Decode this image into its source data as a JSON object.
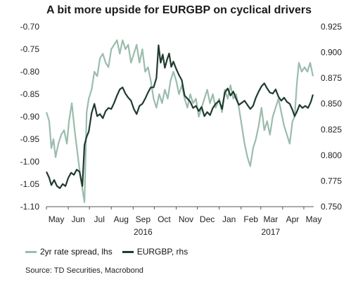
{
  "title": "A bit more upside for EURGBP on cyclical drivers",
  "source": "Source: TD Securities, Macrobond",
  "colors": {
    "series1": "#9bbcad",
    "series2": "#1f3b2e"
  },
  "chart_data": {
    "type": "line",
    "x_months": [
      "May",
      "Jun",
      "Jul",
      "Aug",
      "Sep",
      "Oct",
      "Nov",
      "Dec",
      "Jan",
      "Feb",
      "Mar",
      "Apr",
      "May"
    ],
    "year_labels": [
      {
        "label": "2016",
        "near": "Sep"
      },
      {
        "label": "2017",
        "near": "Mar"
      }
    ],
    "x_range": [
      "2016-05-01",
      "2017-05-15"
    ],
    "y_left": {
      "range": [
        -1.1,
        -0.7
      ],
      "ticks": [
        "-0.70",
        "-0.75",
        "-0.80",
        "-0.85",
        "-0.90",
        "-0.95",
        "-1.00",
        "-1.05",
        "-1.10"
      ]
    },
    "y_right": {
      "range": [
        0.75,
        0.925
      ],
      "ticks": [
        "0.925",
        "0.900",
        "0.875",
        "0.850",
        "0.825",
        "0.800",
        "0.775",
        "0.750"
      ]
    },
    "grid": false,
    "legend_position": "bottom-left",
    "series": [
      {
        "name": "2yr rate spread, lhs",
        "axis": "left",
        "points": [
          [
            "2016-05-01",
            -0.89
          ],
          [
            "2016-05-05",
            -0.91
          ],
          [
            "2016-05-08",
            -0.97
          ],
          [
            "2016-05-11",
            -0.95
          ],
          [
            "2016-05-14",
            -0.99
          ],
          [
            "2016-05-18",
            -0.96
          ],
          [
            "2016-05-22",
            -0.94
          ],
          [
            "2016-05-26",
            -0.93
          ],
          [
            "2016-05-30",
            -0.96
          ],
          [
            "2016-06-02",
            -0.91
          ],
          [
            "2016-06-06",
            -0.87
          ],
          [
            "2016-06-10",
            -0.93
          ],
          [
            "2016-06-14",
            -0.98
          ],
          [
            "2016-06-18",
            -1.03
          ],
          [
            "2016-06-21",
            -1.06
          ],
          [
            "2016-06-24",
            -1.09
          ],
          [
            "2016-06-27",
            -0.89
          ],
          [
            "2016-06-30",
            -0.86
          ],
          [
            "2016-07-04",
            -0.84
          ],
          [
            "2016-07-08",
            -0.8
          ],
          [
            "2016-07-12",
            -0.81
          ],
          [
            "2016-07-16",
            -0.77
          ],
          [
            "2016-07-20",
            -0.76
          ],
          [
            "2016-07-24",
            -0.78
          ],
          [
            "2016-07-28",
            -0.79
          ],
          [
            "2016-08-01",
            -0.75
          ],
          [
            "2016-08-05",
            -0.74
          ],
          [
            "2016-08-09",
            -0.73
          ],
          [
            "2016-08-13",
            -0.76
          ],
          [
            "2016-08-17",
            -0.73
          ],
          [
            "2016-08-21",
            -0.75
          ],
          [
            "2016-08-25",
            -0.74
          ],
          [
            "2016-08-29",
            -0.78
          ],
          [
            "2016-09-02",
            -0.76
          ],
          [
            "2016-09-06",
            -0.74
          ],
          [
            "2016-09-10",
            -0.78
          ],
          [
            "2016-09-14",
            -0.75
          ],
          [
            "2016-09-18",
            -0.8
          ],
          [
            "2016-09-22",
            -0.79
          ],
          [
            "2016-09-26",
            -0.82
          ],
          [
            "2016-09-30",
            -0.86
          ],
          [
            "2016-10-04",
            -0.88
          ],
          [
            "2016-10-08",
            -0.85
          ],
          [
            "2016-10-12",
            -0.87
          ],
          [
            "2016-10-16",
            -0.84
          ],
          [
            "2016-10-20",
            -0.86
          ],
          [
            "2016-10-24",
            -0.82
          ],
          [
            "2016-10-28",
            -0.8
          ],
          [
            "2016-11-01",
            -0.82
          ],
          [
            "2016-11-05",
            -0.85
          ],
          [
            "2016-11-09",
            -0.83
          ],
          [
            "2016-11-13",
            -0.86
          ],
          [
            "2016-11-17",
            -0.88
          ],
          [
            "2016-11-21",
            -0.85
          ],
          [
            "2016-11-25",
            -0.87
          ],
          [
            "2016-11-29",
            -0.86
          ],
          [
            "2016-12-03",
            -0.9
          ],
          [
            "2016-12-07",
            -0.88
          ],
          [
            "2016-12-11",
            -0.86
          ],
          [
            "2016-12-15",
            -0.84
          ],
          [
            "2016-12-19",
            -0.87
          ],
          [
            "2016-12-23",
            -0.85
          ],
          [
            "2016-12-27",
            -0.88
          ],
          [
            "2017-01-01",
            -0.86
          ],
          [
            "2017-01-05",
            -0.89
          ],
          [
            "2017-01-09",
            -0.84
          ],
          [
            "2017-01-13",
            -0.86
          ],
          [
            "2017-01-17",
            -0.83
          ],
          [
            "2017-01-21",
            -0.86
          ],
          [
            "2017-01-25",
            -0.85
          ],
          [
            "2017-01-29",
            -0.88
          ],
          [
            "2017-02-02",
            -0.92
          ],
          [
            "2017-02-06",
            -0.96
          ],
          [
            "2017-02-10",
            -0.99
          ],
          [
            "2017-02-14",
            -1.01
          ],
          [
            "2017-02-18",
            -0.97
          ],
          [
            "2017-02-22",
            -0.95
          ],
          [
            "2017-02-26",
            -0.92
          ],
          [
            "2017-03-02",
            -0.88
          ],
          [
            "2017-03-06",
            -0.93
          ],
          [
            "2017-03-10",
            -0.91
          ],
          [
            "2017-03-14",
            -0.94
          ],
          [
            "2017-03-18",
            -0.9
          ],
          [
            "2017-03-22",
            -0.88
          ],
          [
            "2017-03-26",
            -0.86
          ],
          [
            "2017-03-30",
            -0.89
          ],
          [
            "2017-04-03",
            -0.92
          ],
          [
            "2017-04-07",
            -0.94
          ],
          [
            "2017-04-11",
            -0.96
          ],
          [
            "2017-04-15",
            -0.91
          ],
          [
            "2017-04-18",
            -0.9
          ],
          [
            "2017-04-21",
            -0.83
          ],
          [
            "2017-04-24",
            -0.78
          ],
          [
            "2017-04-28",
            -0.8
          ],
          [
            "2017-05-02",
            -0.79
          ],
          [
            "2017-05-06",
            -0.8
          ],
          [
            "2017-05-10",
            -0.78
          ],
          [
            "2017-05-14",
            -0.81
          ]
        ]
      },
      {
        "name": "EURGBP, rhs",
        "axis": "right",
        "points": [
          [
            "2016-05-01",
            0.784
          ],
          [
            "2016-05-05",
            0.778
          ],
          [
            "2016-05-08",
            0.771
          ],
          [
            "2016-05-12",
            0.776
          ],
          [
            "2016-05-16",
            0.77
          ],
          [
            "2016-05-20",
            0.768
          ],
          [
            "2016-05-24",
            0.772
          ],
          [
            "2016-05-28",
            0.77
          ],
          [
            "2016-06-01",
            0.778
          ],
          [
            "2016-06-05",
            0.783
          ],
          [
            "2016-06-09",
            0.781
          ],
          [
            "2016-06-13",
            0.786
          ],
          [
            "2016-06-17",
            0.784
          ],
          [
            "2016-06-21",
            0.77
          ],
          [
            "2016-06-24",
            0.81
          ],
          [
            "2016-06-27",
            0.818
          ],
          [
            "2016-06-30",
            0.823
          ],
          [
            "2016-07-04",
            0.841
          ],
          [
            "2016-07-08",
            0.85
          ],
          [
            "2016-07-12",
            0.838
          ],
          [
            "2016-07-16",
            0.84
          ],
          [
            "2016-07-20",
            0.836
          ],
          [
            "2016-07-24",
            0.843
          ],
          [
            "2016-07-28",
            0.846
          ],
          [
            "2016-08-01",
            0.845
          ],
          [
            "2016-08-05",
            0.851
          ],
          [
            "2016-08-09",
            0.858
          ],
          [
            "2016-08-13",
            0.864
          ],
          [
            "2016-08-17",
            0.866
          ],
          [
            "2016-08-21",
            0.86
          ],
          [
            "2016-08-25",
            0.856
          ],
          [
            "2016-08-29",
            0.853
          ],
          [
            "2016-09-02",
            0.845
          ],
          [
            "2016-09-06",
            0.84
          ],
          [
            "2016-09-10",
            0.848
          ],
          [
            "2016-09-14",
            0.85
          ],
          [
            "2016-09-18",
            0.855
          ],
          [
            "2016-09-22",
            0.861
          ],
          [
            "2016-09-26",
            0.866
          ],
          [
            "2016-09-30",
            0.866
          ],
          [
            "2016-10-04",
            0.875
          ],
          [
            "2016-10-07",
            0.907
          ],
          [
            "2016-10-10",
            0.89
          ],
          [
            "2016-10-13",
            0.898
          ],
          [
            "2016-10-16",
            0.885
          ],
          [
            "2016-10-19",
            0.893
          ],
          [
            "2016-10-22",
            0.899
          ],
          [
            "2016-10-25",
            0.886
          ],
          [
            "2016-10-28",
            0.891
          ],
          [
            "2016-11-01",
            0.884
          ],
          [
            "2016-11-05",
            0.878
          ],
          [
            "2016-11-09",
            0.873
          ],
          [
            "2016-11-13",
            0.858
          ],
          [
            "2016-11-17",
            0.855
          ],
          [
            "2016-11-21",
            0.852
          ],
          [
            "2016-11-25",
            0.846
          ],
          [
            "2016-11-29",
            0.848
          ],
          [
            "2016-12-03",
            0.843
          ],
          [
            "2016-12-07",
            0.847
          ],
          [
            "2016-12-11",
            0.838
          ],
          [
            "2016-12-15",
            0.842
          ],
          [
            "2016-12-19",
            0.839
          ],
          [
            "2016-12-23",
            0.846
          ],
          [
            "2016-12-27",
            0.85
          ],
          [
            "2017-01-01",
            0.853
          ],
          [
            "2017-01-05",
            0.845
          ],
          [
            "2017-01-09",
            0.861
          ],
          [
            "2017-01-13",
            0.865
          ],
          [
            "2017-01-17",
            0.858
          ],
          [
            "2017-01-21",
            0.862
          ],
          [
            "2017-01-25",
            0.855
          ],
          [
            "2017-01-29",
            0.849
          ],
          [
            "2017-02-02",
            0.851
          ],
          [
            "2017-02-06",
            0.853
          ],
          [
            "2017-02-10",
            0.849
          ],
          [
            "2017-02-14",
            0.845
          ],
          [
            "2017-02-18",
            0.848
          ],
          [
            "2017-02-22",
            0.856
          ],
          [
            "2017-02-26",
            0.862
          ],
          [
            "2017-03-02",
            0.867
          ],
          [
            "2017-03-06",
            0.87
          ],
          [
            "2017-03-10",
            0.865
          ],
          [
            "2017-03-14",
            0.861
          ],
          [
            "2017-03-18",
            0.86
          ],
          [
            "2017-03-22",
            0.864
          ],
          [
            "2017-03-26",
            0.857
          ],
          [
            "2017-03-30",
            0.853
          ],
          [
            "2017-04-03",
            0.856
          ],
          [
            "2017-04-07",
            0.852
          ],
          [
            "2017-04-11",
            0.85
          ],
          [
            "2017-04-15",
            0.844
          ],
          [
            "2017-04-18",
            0.838
          ],
          [
            "2017-04-21",
            0.842
          ],
          [
            "2017-04-25",
            0.849
          ],
          [
            "2017-04-29",
            0.846
          ],
          [
            "2017-05-03",
            0.848
          ],
          [
            "2017-05-07",
            0.846
          ],
          [
            "2017-05-11",
            0.852
          ],
          [
            "2017-05-14",
            0.859
          ]
        ]
      }
    ]
  }
}
